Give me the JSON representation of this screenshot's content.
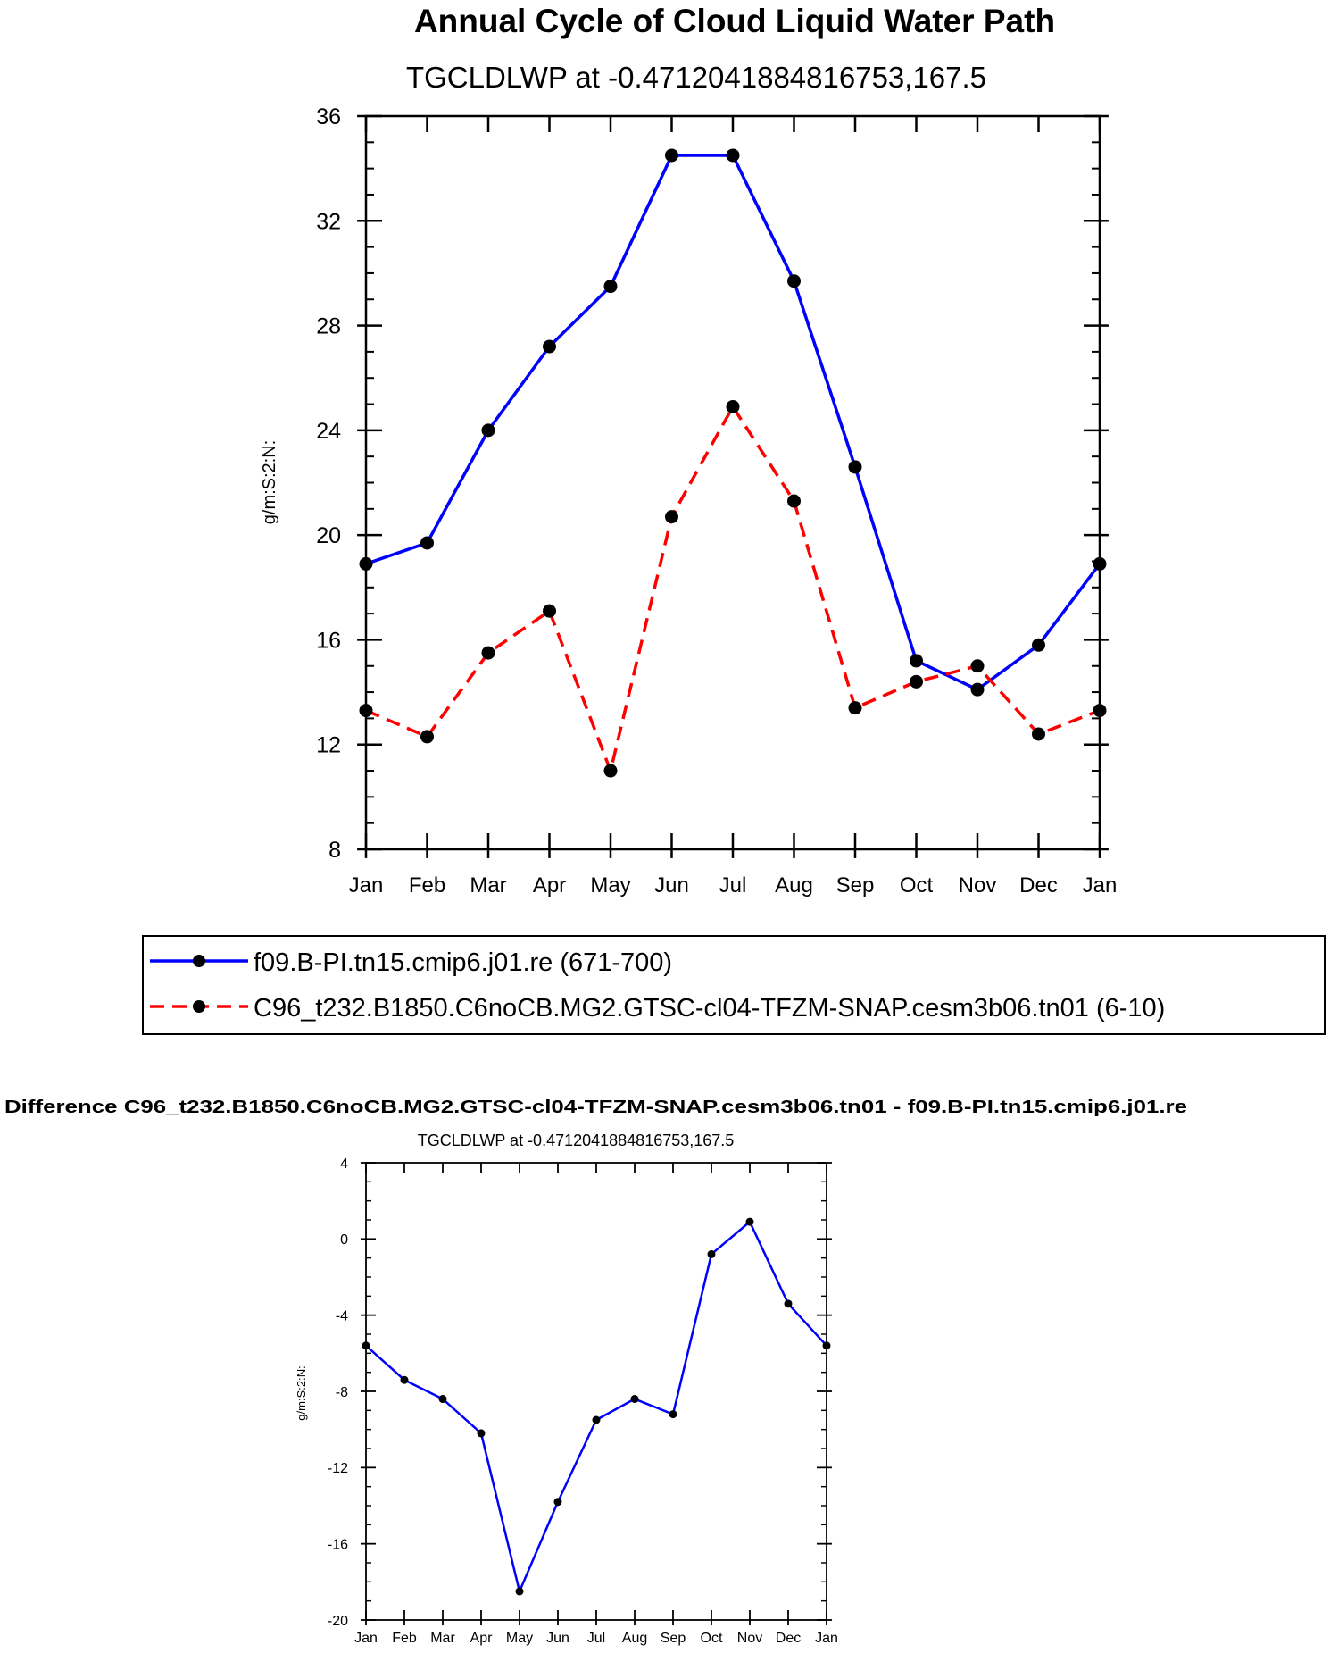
{
  "chart_data": [
    {
      "type": "line",
      "title": "Annual Cycle of Cloud Liquid Water Path",
      "subtitle": "TGCLDLWP at -0.4712041884816753,167.5",
      "xlabel": "",
      "ylabel": "g/m:S:2:N:",
      "categories": [
        "Jan",
        "Feb",
        "Mar",
        "Apr",
        "May",
        "Jun",
        "Jul",
        "Aug",
        "Sep",
        "Oct",
        "Nov",
        "Dec",
        "Jan"
      ],
      "yticks": [
        "8",
        "12",
        "16",
        "20",
        "24",
        "28",
        "32",
        "36"
      ],
      "ylim": [
        8,
        36
      ],
      "legend_position": "bottom",
      "series": [
        {
          "name": "f09.B-PI.tn15.cmip6.j01.re (671-700)",
          "color": "#0000ff",
          "dash": "solid",
          "values": [
            18.9,
            19.7,
            24.0,
            27.2,
            29.5,
            34.5,
            34.5,
            29.7,
            22.6,
            15.2,
            14.1,
            15.8,
            18.9
          ]
        },
        {
          "name": "C96_t232.B1850.C6noCB.MG2.GTSC-cl04-TFZM-SNAP.cesm3b06.tn01 (6-10)",
          "color": "#ff0000",
          "dash": "dashed",
          "values": [
            13.3,
            12.3,
            15.5,
            17.1,
            11.0,
            20.7,
            24.9,
            21.3,
            13.4,
            14.4,
            15.0,
            12.4,
            13.3
          ]
        }
      ]
    },
    {
      "type": "line",
      "title": "Difference C96_t232.B1850.C6noCB.MG2.GTSC-cl04-TFZM-SNAP.cesm3b06.tn01 - f09.B-PI.tn15.cmip6.j01.re",
      "subtitle": "TGCLDLWP at -0.4712041884816753,167.5",
      "xlabel": "",
      "ylabel": "g/m:S:2:N:",
      "categories": [
        "Jan",
        "Feb",
        "Mar",
        "Apr",
        "May",
        "Jun",
        "Jul",
        "Aug",
        "Sep",
        "Oct",
        "Nov",
        "Dec",
        "Jan"
      ],
      "yticks": [
        "-20",
        "-16",
        "-12",
        "-8",
        "-4",
        "0",
        "4"
      ],
      "ylim": [
        -20,
        4
      ],
      "series": [
        {
          "name": "Difference",
          "color": "#0000ff",
          "dash": "solid",
          "values": [
            -5.6,
            -7.4,
            -8.4,
            -10.2,
            -18.5,
            -13.8,
            -9.5,
            -8.4,
            -9.2,
            -0.8,
            0.9,
            -3.4,
            -5.6
          ]
        }
      ]
    }
  ]
}
